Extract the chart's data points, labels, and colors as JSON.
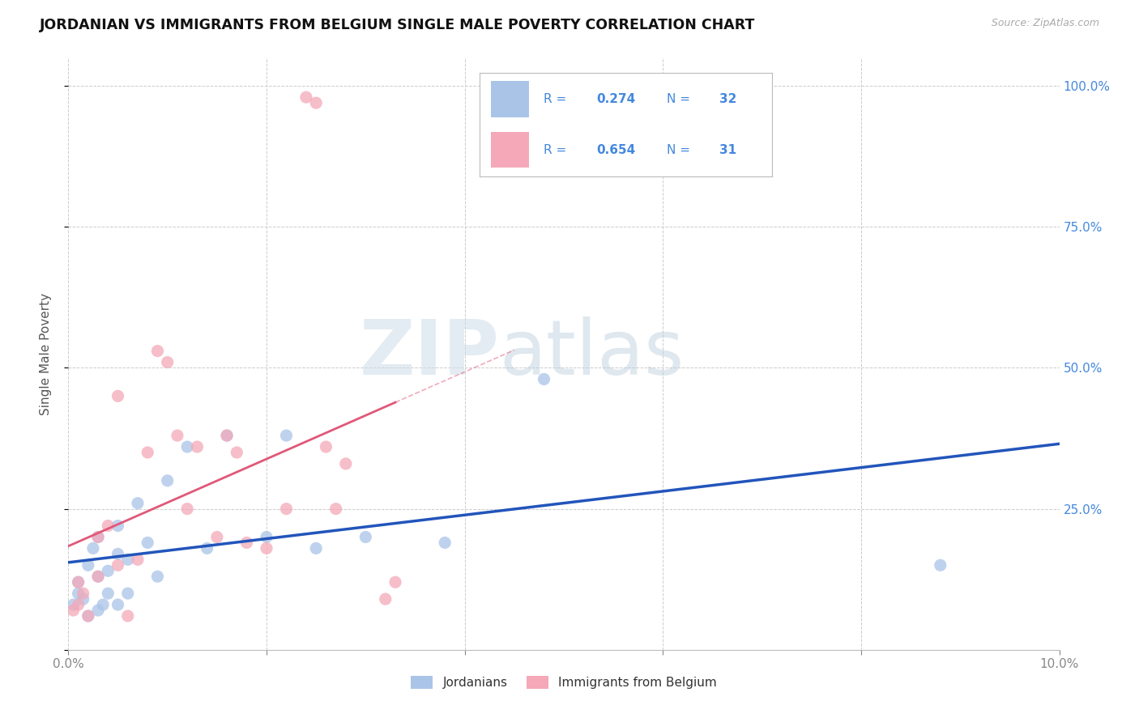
{
  "title": "JORDANIAN VS IMMIGRANTS FROM BELGIUM SINGLE MALE POVERTY CORRELATION CHART",
  "source": "Source: ZipAtlas.com",
  "ylabel": "Single Male Poverty",
  "xlim": [
    0.0,
    0.1
  ],
  "ylim": [
    0.0,
    1.05
  ],
  "R_jordanian": 0.274,
  "N_jordanian": 32,
  "R_belgium": 0.654,
  "N_belgium": 31,
  "jordanian_color": "#aac4e8",
  "belgium_color": "#f4a8b8",
  "jordanian_line_color": "#2255bb",
  "belgium_line_color": "#e05878",
  "watermark_zip": "ZIP",
  "watermark_atlas": "atlas",
  "jordanian_x": [
    0.0005,
    0.001,
    0.001,
    0.0015,
    0.002,
    0.002,
    0.0025,
    0.003,
    0.003,
    0.003,
    0.0035,
    0.004,
    0.004,
    0.005,
    0.005,
    0.005,
    0.006,
    0.006,
    0.007,
    0.008,
    0.009,
    0.01,
    0.012,
    0.014,
    0.016,
    0.02,
    0.022,
    0.025,
    0.03,
    0.038,
    0.048,
    0.088
  ],
  "jordanian_y": [
    0.08,
    0.1,
    0.12,
    0.09,
    0.06,
    0.15,
    0.18,
    0.07,
    0.13,
    0.2,
    0.08,
    0.14,
    0.1,
    0.17,
    0.22,
    0.08,
    0.16,
    0.1,
    0.26,
    0.19,
    0.13,
    0.3,
    0.36,
    0.18,
    0.38,
    0.2,
    0.38,
    0.18,
    0.2,
    0.19,
    0.48,
    0.15
  ],
  "belgium_x": [
    0.0005,
    0.001,
    0.001,
    0.0015,
    0.002,
    0.003,
    0.003,
    0.004,
    0.005,
    0.005,
    0.006,
    0.007,
    0.008,
    0.009,
    0.01,
    0.011,
    0.012,
    0.013,
    0.015,
    0.016,
    0.017,
    0.018,
    0.02,
    0.022,
    0.024,
    0.025,
    0.026,
    0.027,
    0.028,
    0.032,
    0.033
  ],
  "belgium_y": [
    0.07,
    0.08,
    0.12,
    0.1,
    0.06,
    0.2,
    0.13,
    0.22,
    0.45,
    0.15,
    0.06,
    0.16,
    0.35,
    0.53,
    0.51,
    0.38,
    0.25,
    0.36,
    0.2,
    0.38,
    0.35,
    0.19,
    0.18,
    0.25,
    0.98,
    0.97,
    0.36,
    0.25,
    0.33,
    0.09,
    0.12
  ]
}
